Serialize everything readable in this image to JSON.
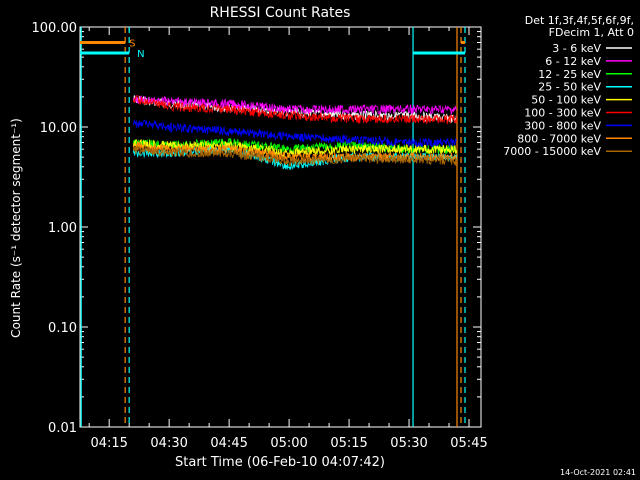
{
  "chart_data": {
    "type": "line",
    "title": "RHESSI Count Rates",
    "xlabel": "Start Time (06-Feb-10 04:07:42)",
    "ylabel": "Count Rate (s⁻¹ detector segment⁻¹)",
    "y_scale": "log",
    "ylim": [
      0.01,
      100
    ],
    "y_ticks": [
      "0.01",
      "0.10",
      "1.00",
      "10.00",
      "100.00"
    ],
    "x_range": [
      "04:07:42",
      "05:48:00"
    ],
    "x_ticks": [
      "04:15",
      "04:30",
      "04:45",
      "05:00",
      "05:15",
      "05:30",
      "05:45"
    ],
    "grid": false,
    "legend_position": "right",
    "legend_header": [
      "Det 1f,3f,4f,5f,6f,9f,",
      "FDecim 1, Att 0"
    ],
    "series": [
      {
        "name": "3 - 6 keV",
        "color": "#ffffff",
        "x": [
          "04:21",
          "04:30",
          "04:45",
          "05:00",
          "05:15",
          "05:30",
          "05:42"
        ],
        "values": [
          19,
          17,
          15.5,
          14,
          13,
          13,
          12
        ]
      },
      {
        "name": "6 - 12 keV",
        "color": "#ff00ff",
        "x": [
          "04:21",
          "04:30",
          "04:45",
          "05:00",
          "05:15",
          "05:30",
          "05:42"
        ],
        "values": [
          19,
          18,
          17,
          15,
          15,
          15,
          15
        ]
      },
      {
        "name": "12 - 25 keV",
        "color": "#00ff00",
        "x": [
          "04:21",
          "04:30",
          "04:45",
          "05:00",
          "05:15",
          "05:30",
          "05:42"
        ],
        "values": [
          7,
          6.5,
          7,
          6,
          6.5,
          6,
          6
        ]
      },
      {
        "name": "25 - 50 keV",
        "color": "#00ffff",
        "x": [
          "04:21",
          "04:30",
          "04:45",
          "05:00",
          "05:15",
          "05:30",
          "05:42"
        ],
        "values": [
          5.5,
          5.5,
          6,
          4,
          5,
          5,
          5
        ]
      },
      {
        "name": "50 - 100 keV",
        "color": "#ffff00",
        "x": [
          "04:21",
          "04:30",
          "04:45",
          "05:00",
          "05:15",
          "05:30",
          "05:42"
        ],
        "values": [
          7,
          6.5,
          6.5,
          5.5,
          6,
          6,
          6
        ]
      },
      {
        "name": "100 - 300 keV",
        "color": "#ff0000",
        "x": [
          "04:21",
          "04:30",
          "04:45",
          "05:00",
          "05:15",
          "05:30",
          "05:42"
        ],
        "values": [
          19,
          16,
          15,
          13,
          12,
          12,
          12
        ]
      },
      {
        "name": "300 - 800 keV",
        "color": "#0000ff",
        "x": [
          "04:21",
          "04:30",
          "04:45",
          "05:00",
          "05:15",
          "05:30",
          "05:42"
        ],
        "values": [
          11,
          10,
          9,
          8,
          7.5,
          7,
          7
        ]
      },
      {
        "name": "800 - 7000 keV",
        "color": "#ff8800",
        "x": [
          "04:21",
          "04:30",
          "04:45",
          "05:00",
          "05:15",
          "05:30",
          "05:42"
        ],
        "values": [
          6.5,
          6,
          6,
          5,
          5,
          5,
          5
        ]
      },
      {
        "name": "7000 - 15000 keV",
        "color": "#aa6600",
        "x": [
          "04:21",
          "04:30",
          "04:45",
          "05:00",
          "05:15",
          "05:30",
          "05:42"
        ],
        "values": [
          6,
          5.5,
          5.5,
          4.5,
          4.8,
          4.8,
          4.5
        ]
      }
    ],
    "annotations": {
      "flag_S": {
        "label": "S",
        "color": "#ff8800",
        "level": 70,
        "segments": [
          [
            "04:07:42",
            "04:19"
          ],
          [
            "05:43",
            "05:44"
          ]
        ]
      },
      "flag_N": {
        "label": "N",
        "color": "#00ffff",
        "level": 55,
        "segments": [
          [
            "04:07:42",
            "04:20"
          ],
          [
            "05:31",
            "05:44"
          ]
        ]
      },
      "vertical_lines": [
        {
          "time": "04:08",
          "color": "#00ffff",
          "style": "solid"
        },
        {
          "time": "04:19",
          "color": "#ff8800",
          "style": "dashed"
        },
        {
          "time": "04:20",
          "color": "#00ffff",
          "style": "dashed"
        },
        {
          "time": "05:31",
          "color": "#00ffff",
          "style": "solid"
        },
        {
          "time": "05:42",
          "color": "#ff8800",
          "style": "solid"
        },
        {
          "time": "05:43",
          "color": "#ff8800",
          "style": "dashed"
        },
        {
          "time": "05:44",
          "color": "#00ffff",
          "style": "dashed"
        }
      ]
    },
    "footer_timestamp": "14-Oct-2021 02:41"
  }
}
